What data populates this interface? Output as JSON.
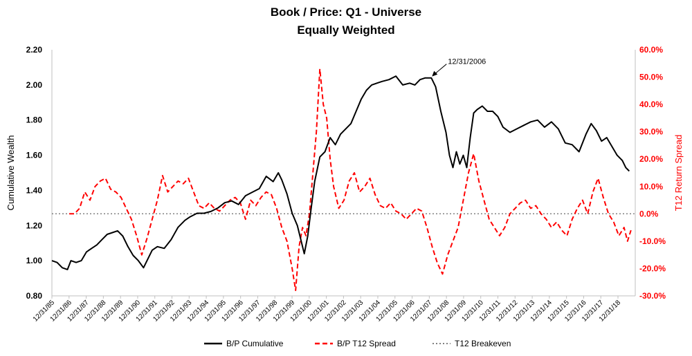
{
  "chart_data": {
    "type": "line",
    "title": "Book / Price: Q1 - Universe",
    "subtitle": "Equally Weighted",
    "ylabel": "Cumulative Wealth",
    "y2label": "T12 Return Spread",
    "ylim": [
      0.8,
      2.2
    ],
    "y2lim": [
      -0.3,
      0.6
    ],
    "yticks": [
      "0.80",
      "1.00",
      "1.20",
      "1.40",
      "1.60",
      "1.80",
      "2.00",
      "2.20"
    ],
    "y2ticks": [
      "-30.0%",
      "-20.0%",
      "-10.0%",
      "0.0%",
      "10.0%",
      "20.0%",
      "30.0%",
      "40.0%",
      "50.0%",
      "60.0%"
    ],
    "xticks": [
      "12/31/85",
      "12/31/86",
      "12/31/87",
      "12/31/88",
      "12/31/89",
      "12/31/90",
      "12/31/91",
      "12/31/92",
      "12/31/93",
      "12/31/94",
      "12/31/95",
      "12/31/96",
      "12/31/97",
      "12/31/98",
      "12/31/99",
      "12/31/00",
      "12/31/01",
      "12/31/02",
      "12/31/03",
      "12/31/04",
      "12/31/05",
      "12/31/06",
      "12/31/07",
      "12/31/08",
      "12/31/09",
      "12/31/10",
      "12/31/11",
      "12/31/12",
      "12/31/13",
      "12/31/14",
      "12/31/15",
      "12/31/16",
      "12/31/17",
      "12/31/18"
    ],
    "annotation": {
      "text": "12/31/2006",
      "x": 2006.95,
      "y": 2.04
    },
    "legend_position": "bottom",
    "grid": false,
    "series": [
      {
        "name": "B/P Cumulative",
        "axis": "left",
        "color": "#000000",
        "style": "solid",
        "x": [
          1985.0,
          1985.3,
          1985.6,
          1985.9,
          1986.1,
          1986.4,
          1986.7,
          1987.0,
          1987.3,
          1987.6,
          1987.9,
          1988.2,
          1988.5,
          1988.8,
          1989.1,
          1989.4,
          1989.7,
          1990.0,
          1990.3,
          1990.6,
          1990.8,
          1991.1,
          1991.5,
          1991.9,
          1992.3,
          1992.7,
          1993.0,
          1993.4,
          1993.8,
          1994.2,
          1994.6,
          1995.0,
          1995.4,
          1995.8,
          1996.2,
          1996.6,
          1997.0,
          1997.4,
          1997.8,
          1998.1,
          1998.3,
          1998.6,
          1998.9,
          1999.2,
          1999.4,
          1999.6,
          1999.8,
          2000.0,
          2000.2,
          2000.5,
          2000.8,
          2001.1,
          2001.4,
          2001.7,
          2002.0,
          2002.3,
          2002.6,
          2002.9,
          2003.2,
          2003.5,
          2003.8,
          2004.1,
          2004.5,
          2004.9,
          2005.3,
          2005.7,
          2006.0,
          2006.3,
          2006.6,
          2006.95,
          2007.2,
          2007.5,
          2007.8,
          2008.0,
          2008.2,
          2008.4,
          2008.6,
          2008.8,
          2009.0,
          2009.2,
          2009.4,
          2009.6,
          2009.9,
          2010.2,
          2010.5,
          2010.8,
          2011.1,
          2011.5,
          2011.9,
          2012.3,
          2012.7,
          2013.1,
          2013.5,
          2013.9,
          2014.3,
          2014.7,
          2015.1,
          2015.5,
          2015.9,
          2016.2,
          2016.5,
          2016.8,
          2017.1,
          2017.4,
          2017.7,
          2018.0,
          2018.2,
          2018.4
        ],
        "values": [
          1.0,
          0.99,
          0.96,
          0.95,
          1.0,
          0.99,
          1.0,
          1.05,
          1.07,
          1.09,
          1.12,
          1.15,
          1.16,
          1.17,
          1.14,
          1.08,
          1.03,
          1.0,
          0.96,
          1.02,
          1.06,
          1.08,
          1.07,
          1.12,
          1.19,
          1.23,
          1.25,
          1.27,
          1.27,
          1.28,
          1.3,
          1.33,
          1.34,
          1.32,
          1.37,
          1.39,
          1.41,
          1.48,
          1.45,
          1.5,
          1.46,
          1.38,
          1.27,
          1.2,
          1.12,
          1.04,
          1.14,
          1.3,
          1.45,
          1.59,
          1.62,
          1.7,
          1.66,
          1.72,
          1.75,
          1.78,
          1.85,
          1.92,
          1.97,
          2.0,
          2.01,
          2.02,
          2.03,
          2.05,
          2.0,
          2.01,
          2.0,
          2.03,
          2.04,
          2.04,
          1.99,
          1.85,
          1.73,
          1.6,
          1.53,
          1.62,
          1.55,
          1.6,
          1.53,
          1.7,
          1.84,
          1.86,
          1.88,
          1.85,
          1.85,
          1.82,
          1.76,
          1.73,
          1.75,
          1.77,
          1.79,
          1.8,
          1.76,
          1.79,
          1.75,
          1.67,
          1.66,
          1.62,
          1.72,
          1.78,
          1.74,
          1.68,
          1.7,
          1.65,
          1.6,
          1.57,
          1.53,
          1.51
        ]
      },
      {
        "name": "B/P T12 Spread",
        "axis": "right",
        "color": "#ff0000",
        "style": "dashed",
        "x": [
          1986.0,
          1986.3,
          1986.6,
          1986.9,
          1987.2,
          1987.5,
          1987.8,
          1988.1,
          1988.4,
          1988.7,
          1989.0,
          1989.3,
          1989.6,
          1989.9,
          1990.2,
          1990.5,
          1990.8,
          1991.1,
          1991.4,
          1991.7,
          1992.0,
          1992.3,
          1992.6,
          1992.9,
          1993.2,
          1993.5,
          1993.8,
          1994.1,
          1994.4,
          1994.7,
          1995.0,
          1995.3,
          1995.6,
          1995.9,
          1996.2,
          1996.5,
          1996.8,
          1997.1,
          1997.4,
          1997.7,
          1998.0,
          1998.3,
          1998.6,
          1998.9,
          1999.1,
          1999.3,
          1999.5,
          1999.7,
          1999.9,
          2000.1,
          2000.3,
          2000.5,
          2000.7,
          2000.9,
          2001.1,
          2001.3,
          2001.6,
          2001.9,
          2002.2,
          2002.5,
          2002.8,
          2003.1,
          2003.4,
          2003.7,
          2004.0,
          2004.3,
          2004.6,
          2004.9,
          2005.2,
          2005.5,
          2005.8,
          2006.1,
          2006.4,
          2006.7,
          2007.0,
          2007.3,
          2007.6,
          2007.9,
          2008.2,
          2008.5,
          2008.8,
          2009.1,
          2009.4,
          2009.7,
          2010.0,
          2010.3,
          2010.6,
          2010.9,
          2011.2,
          2011.5,
          2011.8,
          2012.1,
          2012.4,
          2012.7,
          2013.0,
          2013.3,
          2013.6,
          2013.9,
          2014.2,
          2014.5,
          2014.8,
          2015.1,
          2015.4,
          2015.7,
          2016.0,
          2016.3,
          2016.6,
          2016.9,
          2017.2,
          2017.5,
          2017.8,
          2018.1,
          2018.3,
          2018.5
        ],
        "values": [
          0.0,
          0.0,
          0.02,
          0.08,
          0.05,
          0.1,
          0.12,
          0.13,
          0.09,
          0.08,
          0.06,
          0.02,
          -0.02,
          -0.08,
          -0.15,
          -0.09,
          -0.02,
          0.05,
          0.14,
          0.08,
          0.1,
          0.12,
          0.11,
          0.13,
          0.08,
          0.03,
          0.02,
          0.04,
          0.02,
          0.01,
          0.03,
          0.05,
          0.06,
          0.04,
          -0.02,
          0.05,
          0.03,
          0.06,
          0.08,
          0.07,
          0.02,
          -0.05,
          -0.1,
          -0.2,
          -0.28,
          -0.12,
          -0.05,
          -0.08,
          0.0,
          0.15,
          0.3,
          0.53,
          0.4,
          0.35,
          0.2,
          0.1,
          0.02,
          0.05,
          0.12,
          0.15,
          0.08,
          0.1,
          0.13,
          0.07,
          0.03,
          0.02,
          0.04,
          0.01,
          0.0,
          -0.02,
          0.0,
          0.02,
          0.01,
          -0.05,
          -0.12,
          -0.18,
          -0.22,
          -0.15,
          -0.1,
          -0.05,
          0.05,
          0.15,
          0.22,
          0.12,
          0.05,
          -0.02,
          -0.05,
          -0.08,
          -0.05,
          0.0,
          0.02,
          0.04,
          0.05,
          0.02,
          0.03,
          0.0,
          -0.02,
          -0.05,
          -0.03,
          -0.06,
          -0.08,
          -0.02,
          0.02,
          0.05,
          0.0,
          0.08,
          0.13,
          0.06,
          0.0,
          -0.03,
          -0.08,
          -0.05,
          -0.1,
          -0.06
        ]
      },
      {
        "name": "T12 Breakeven",
        "axis": "right",
        "color": "#808080",
        "style": "dotted",
        "x": [
          1985.0,
          2018.7
        ],
        "values": [
          0.0,
          0.0
        ]
      }
    ]
  }
}
